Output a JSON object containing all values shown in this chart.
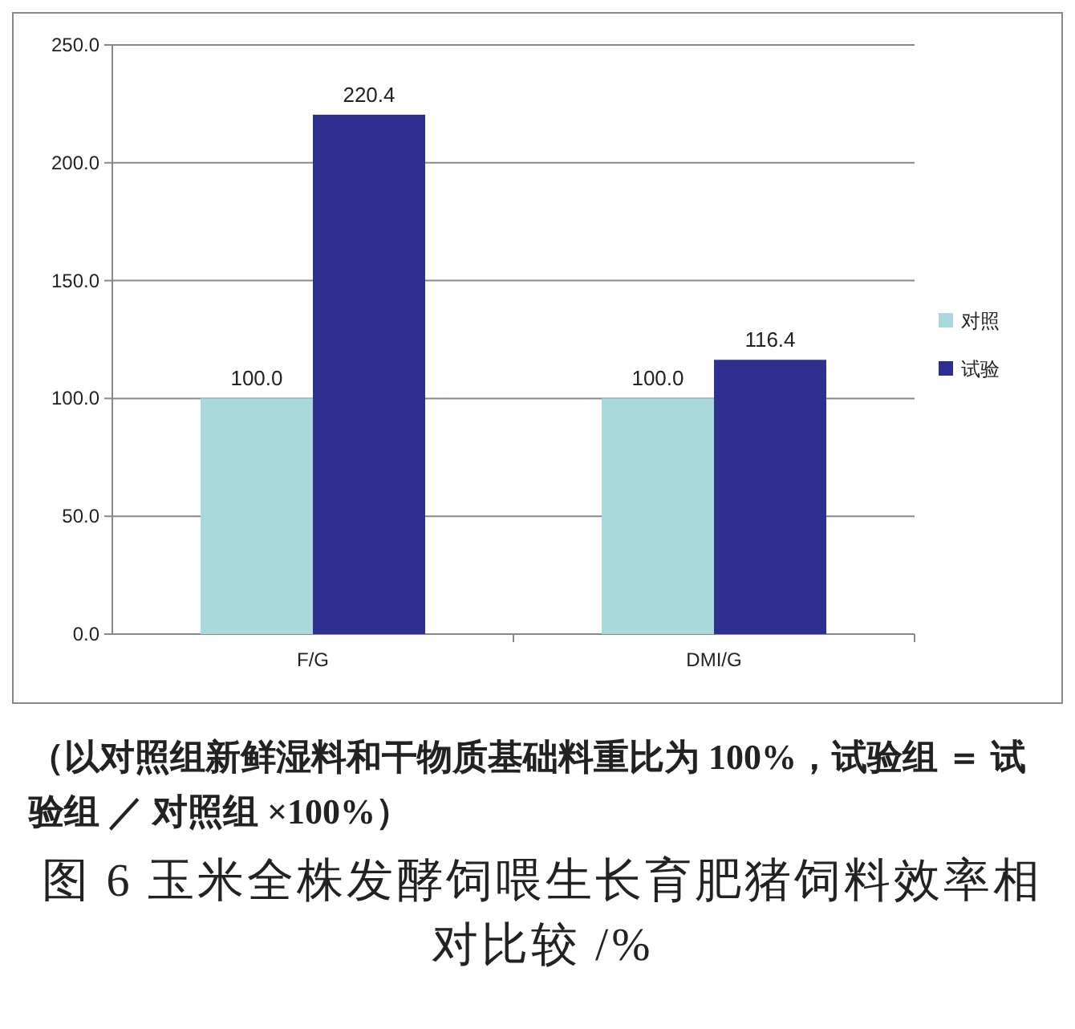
{
  "chart_data": {
    "type": "bar",
    "categories": [
      "F/G",
      "DMI/G"
    ],
    "series": [
      {
        "name": "对照",
        "color": "#a9d9dd",
        "values": [
          100.0,
          100.0
        ],
        "value_labels": [
          "100.0",
          "100.0"
        ]
      },
      {
        "name": "试验",
        "color": "#2f2f8f",
        "values": [
          220.4,
          116.4
        ],
        "value_labels": [
          "220.4",
          "116.4"
        ]
      }
    ],
    "ylim": [
      0,
      250
    ],
    "yticks": [
      {
        "value": 0,
        "label": "0.0"
      },
      {
        "value": 50,
        "label": "50.0"
      },
      {
        "value": 100,
        "label": "100.0"
      },
      {
        "value": 150,
        "label": "150.0"
      },
      {
        "value": 200,
        "label": "200.0"
      },
      {
        "value": 250,
        "label": "250.0"
      }
    ],
    "grid": "y",
    "legend": "right",
    "annotations": [
      "（以对照组新鲜湿料和干物质基础料重比为 100%，试验组 ＝ 试验组 ／ 对照组 ×100%）",
      "图 6  玉米全株发酵饲喂生长育肥猪饲料效率相对比较 /%"
    ]
  }
}
